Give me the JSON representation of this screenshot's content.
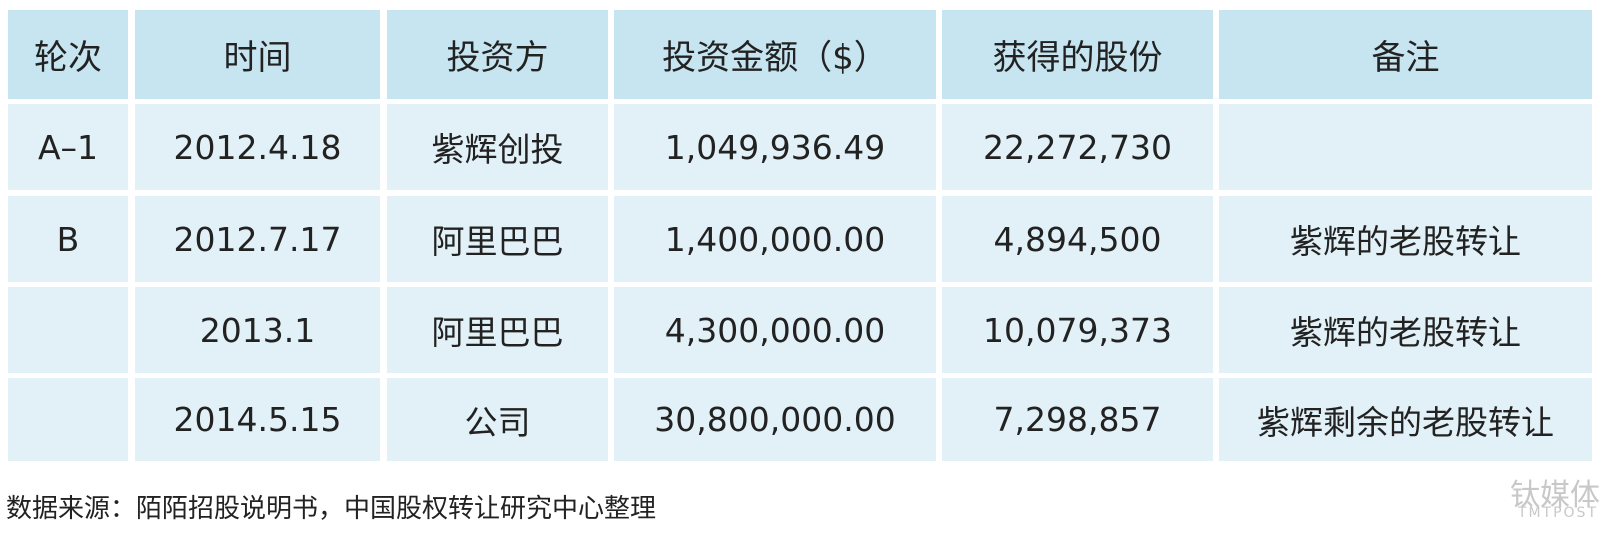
{
  "table": {
    "header": [
      "轮次",
      "时间",
      "投资方",
      "投资金额（$）",
      "获得的股份",
      "备注"
    ],
    "rows": [
      [
        "A–1",
        "2012.4.18",
        "紫辉创投",
        "1,049,936.49",
        "22,272,730",
        null
      ],
      [
        "B",
        "2012.7.17",
        "阿里巴巴",
        "1,400,000.00",
        "4,894,500",
        "紫辉的老股转让"
      ],
      [
        null,
        "2013.1",
        "阿里巴巴",
        "4,300,000.00",
        "10,079,373",
        "紫辉的老股转让"
      ],
      [
        null,
        "2014.5.15",
        "公司",
        "30,800,000.00",
        "7,298,857",
        "紫辉剩余的老股转让"
      ]
    ]
  },
  "source": "数据来源：陌陌招股说明书，中国股权转让研究中心整理",
  "watermark": {
    "name": "钛媒体",
    "latin": "TMTPOST"
  }
}
